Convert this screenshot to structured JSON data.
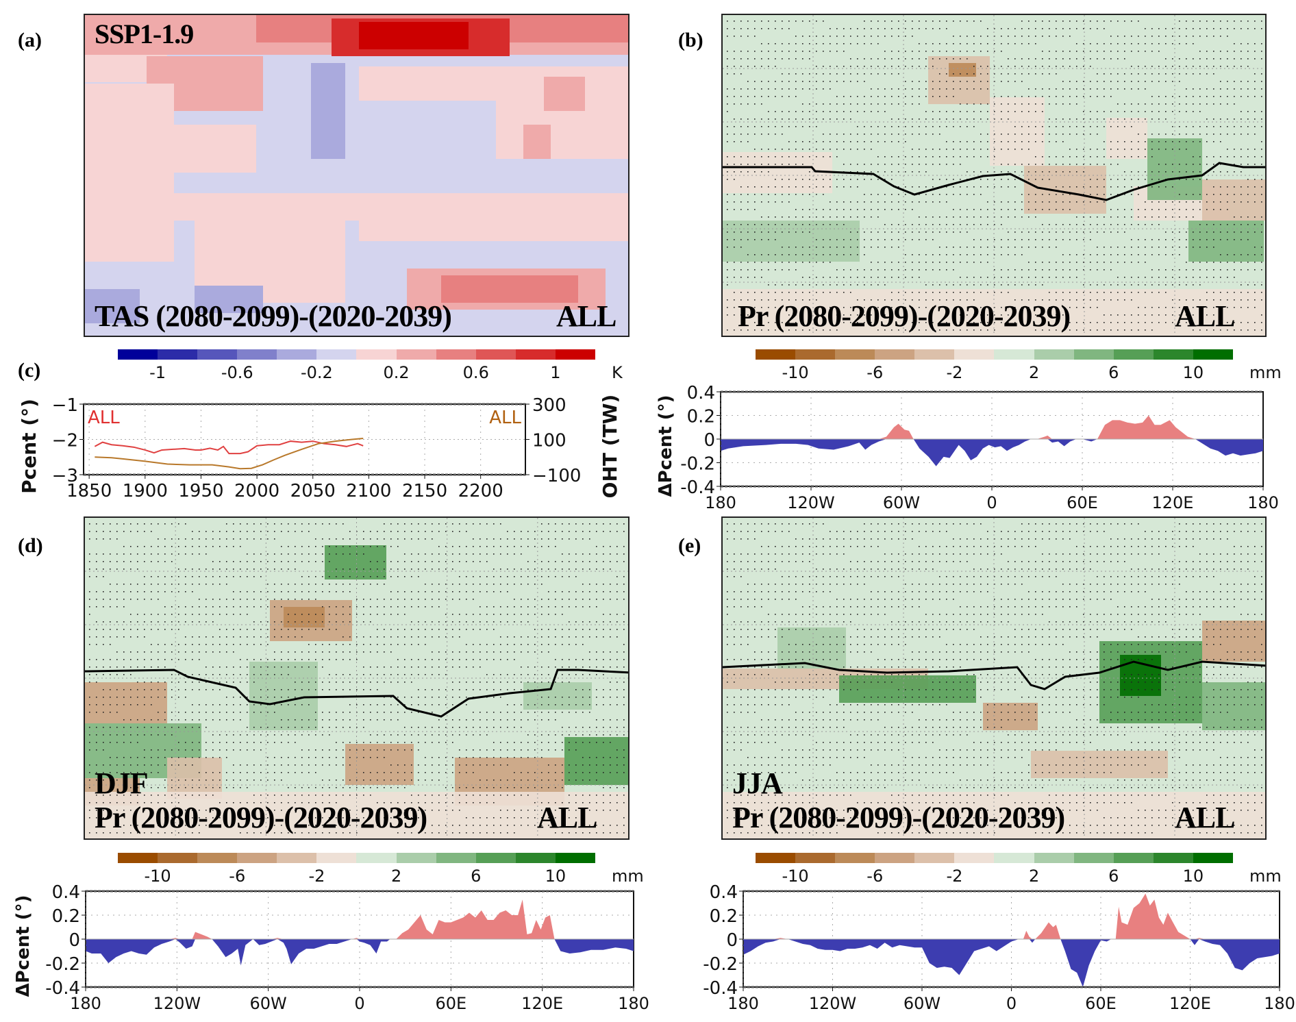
{
  "panels": {
    "a": {
      "letter": "(a)",
      "scenario": "SSP1-1.9",
      "title": "TAS (2080-2099)-(2020-2039)",
      "tag": "ALL"
    },
    "b": {
      "letter": "(b)",
      "title": "Pr (2080-2099)-(2020-2039)",
      "tag": "ALL"
    },
    "c": {
      "letter": "(c)"
    },
    "d": {
      "letter": "(d)",
      "season": "DJF",
      "title": "Pr (2080-2099)-(2020-2039)",
      "tag": "ALL"
    },
    "e": {
      "letter": "(e)",
      "season": "JJA",
      "title": "Pr (2080-2099)-(2020-2039)",
      "tag": "ALL"
    }
  },
  "colorbars": {
    "tas": {
      "unit": "K",
      "colors": [
        "#00009a",
        "#2c2ca8",
        "#5656bb",
        "#8080cb",
        "#aaaadd",
        "#d4d4ee",
        "#f7d4d4",
        "#efaaaa",
        "#e78080",
        "#df5656",
        "#d72c2c",
        "#cc0000"
      ],
      "ticks": [
        "-1",
        "-0.6",
        "-0.2",
        "0.2",
        "0.6",
        "1"
      ]
    },
    "pr": {
      "unit": "mm",
      "colors": [
        "#9a4c00",
        "#aa6a2e",
        "#bc8a58",
        "#cca382",
        "#dcc0aa",
        "#eee0d6",
        "#d6e8d6",
        "#aacdaa",
        "#80b680",
        "#569f56",
        "#2c862c",
        "#006e00"
      ],
      "ticks": [
        "-10",
        "-6",
        "-2",
        "2",
        "6",
        "10"
      ]
    }
  },
  "chart_data": [
    {
      "panel": "c",
      "type": "line",
      "title": "",
      "xlabel": "",
      "ylabel": "Pcent (°)",
      "ylabel_right": "OHT (TW)",
      "xlim": [
        1845,
        2240
      ],
      "ylim": [
        -3,
        -1
      ],
      "ylim_right": [
        -100,
        300
      ],
      "xticks": [
        "1850",
        "1900",
        "1950",
        "2000",
        "2050",
        "2100",
        "2150",
        "2200"
      ],
      "yticks": [
        "−1",
        "−2",
        "−3"
      ],
      "yticks_right": [
        "300",
        "100",
        "−100"
      ],
      "grid": true,
      "legend": [
        {
          "name": "ALL",
          "axis": "left",
          "color": "#e03030",
          "placement": "top-left"
        },
        {
          "name": "ALL",
          "axis": "right",
          "color": "#b06010",
          "placement": "top-right"
        }
      ],
      "series": [
        {
          "name": "Pcent ALL",
          "axis": "left",
          "color": "#e04040",
          "x": [
            1855,
            1862,
            1870,
            1880,
            1890,
            1900,
            1908,
            1915,
            1925,
            1935,
            1945,
            1950,
            1958,
            1965,
            1970,
            1975,
            1985,
            1992,
            2000,
            2010,
            2020,
            2030,
            2040,
            2050,
            2060,
            2070,
            2080,
            2090,
            2095
          ],
          "y": [
            -2.2,
            -2.08,
            -2.15,
            -2.18,
            -2.22,
            -2.3,
            -2.38,
            -2.3,
            -2.28,
            -2.26,
            -2.3,
            -2.3,
            -2.25,
            -2.3,
            -2.2,
            -2.4,
            -2.4,
            -2.35,
            -2.18,
            -2.15,
            -2.15,
            -2.05,
            -2.08,
            -2.05,
            -2.12,
            -2.15,
            -2.2,
            -2.12,
            -2.18
          ]
        },
        {
          "name": "OHT ALL",
          "axis": "right",
          "color": "#b8782a",
          "x": [
            1855,
            1870,
            1880,
            1900,
            1920,
            1940,
            1960,
            1975,
            1985,
            1995,
            2005,
            2015,
            2025,
            2040,
            2055,
            2070,
            2085,
            2095
          ],
          "y": [
            -2.5,
            -2.52,
            -2.55,
            -2.62,
            -2.7,
            -2.72,
            -2.72,
            -2.78,
            -2.83,
            -2.82,
            -2.72,
            -2.58,
            -2.45,
            -2.28,
            -2.12,
            -2.05,
            -2.0,
            -1.97
          ]
        }
      ]
    },
    {
      "panel": "b",
      "type": "area",
      "ylabel": "ΔPcent (°)",
      "xlim": [
        -180,
        180
      ],
      "ylim": [
        -0.4,
        0.4
      ],
      "xticks": [
        "180",
        "120W",
        "60W",
        "0",
        "60E",
        "120E",
        "180"
      ],
      "yticks": [
        "0.4",
        "0.2",
        "0",
        "-0.2",
        "-0.4"
      ],
      "positive_color": "#e88080",
      "negative_color": "#3d3db0",
      "grid": true,
      "x": [
        -180,
        -175,
        -165,
        -150,
        -140,
        -130,
        -122,
        -115,
        -105,
        -95,
        -88,
        -84,
        -80,
        -75,
        -70,
        -65,
        -62,
        -58,
        -55,
        -52,
        -48,
        -42,
        -37,
        -32,
        -28,
        -22,
        -18,
        -14,
        -10,
        -6,
        -2,
        2,
        6,
        10,
        14,
        18,
        22,
        26,
        30,
        35,
        37,
        40,
        44,
        48,
        52,
        56,
        60,
        66,
        70,
        75,
        80,
        85,
        90,
        95,
        100,
        104,
        108,
        112,
        118,
        122,
        126,
        130,
        135,
        140,
        145,
        150,
        155,
        160,
        165,
        170,
        175,
        180
      ],
      "y": [
        -0.1,
        -0.08,
        -0.06,
        -0.05,
        -0.04,
        -0.04,
        -0.05,
        -0.08,
        -0.09,
        -0.06,
        -0.03,
        -0.09,
        -0.05,
        -0.02,
        0.02,
        0.1,
        0.13,
        0.08,
        0.07,
        0.0,
        -0.08,
        -0.15,
        -0.23,
        -0.15,
        -0.16,
        -0.05,
        -0.1,
        -0.18,
        -0.15,
        -0.08,
        -0.05,
        -0.07,
        -0.06,
        -0.1,
        -0.07,
        -0.05,
        -0.02,
        0.0,
        0.0,
        0.02,
        0.03,
        -0.03,
        -0.02,
        -0.06,
        -0.02,
        0.0,
        0.0,
        -0.02,
        0.0,
        0.12,
        0.16,
        0.16,
        0.14,
        0.13,
        0.14,
        0.2,
        0.12,
        0.12,
        0.16,
        0.1,
        0.06,
        0.02,
        0.0,
        -0.04,
        -0.08,
        -0.1,
        -0.14,
        -0.12,
        -0.14,
        -0.13,
        -0.12,
        -0.1
      ]
    },
    {
      "panel": "d",
      "type": "area",
      "ylabel": "ΔPcent (°)",
      "xlim": [
        -180,
        180
      ],
      "ylim": [
        -0.4,
        0.4
      ],
      "xticks": [
        "180",
        "120W",
        "60W",
        "0",
        "60E",
        "120E",
        "180"
      ],
      "yticks": [
        "0.4",
        "0.2",
        "0",
        "-0.2",
        "-0.4"
      ],
      "positive_color": "#e88080",
      "negative_color": "#3d3db0",
      "grid": true,
      "x": [
        -180,
        -176,
        -170,
        -165,
        -160,
        -155,
        -150,
        -145,
        -140,
        -135,
        -130,
        -125,
        -121,
        -118,
        -114,
        -110,
        -108,
        -104,
        -100,
        -97,
        -93,
        -88,
        -84,
        -80,
        -78,
        -75,
        -72,
        -70,
        -66,
        -62,
        -58,
        -54,
        -50,
        -48,
        -45,
        -40,
        -35,
        -30,
        -25,
        -20,
        -15,
        -10,
        -5,
        -2,
        0,
        3,
        7,
        11,
        14,
        18,
        20,
        24,
        28,
        32,
        36,
        40,
        44,
        48,
        52,
        56,
        60,
        64,
        68,
        72,
        76,
        80,
        84,
        88,
        92,
        96,
        100,
        104,
        107,
        110,
        113,
        116,
        119,
        122,
        125,
        128,
        132,
        138,
        145,
        152,
        160,
        168,
        175,
        180
      ],
      "y": [
        -0.1,
        -0.12,
        -0.12,
        -0.2,
        -0.15,
        -0.12,
        -0.1,
        -0.12,
        -0.13,
        -0.07,
        -0.04,
        -0.02,
        0.01,
        -0.03,
        -0.08,
        -0.06,
        0.06,
        0.04,
        0.02,
        0.0,
        -0.06,
        -0.15,
        -0.12,
        -0.08,
        -0.22,
        -0.05,
        -0.02,
        0.0,
        -0.05,
        -0.04,
        -0.02,
        0.01,
        -0.03,
        -0.08,
        -0.21,
        -0.12,
        -0.08,
        -0.08,
        -0.06,
        -0.04,
        -0.04,
        -0.02,
        0.0,
        0.01,
        -0.02,
        -0.03,
        -0.05,
        -0.12,
        -0.02,
        -0.02,
        0.0,
        0.0,
        0.05,
        0.08,
        0.14,
        0.2,
        0.08,
        0.04,
        0.16,
        0.14,
        0.14,
        0.16,
        0.18,
        0.22,
        0.18,
        0.24,
        0.16,
        0.16,
        0.22,
        0.24,
        0.2,
        0.2,
        0.33,
        0.04,
        0.05,
        0.16,
        0.08,
        0.18,
        0.2,
        0.0,
        -0.1,
        -0.12,
        -0.11,
        -0.09,
        -0.09,
        -0.07,
        -0.08,
        -0.1
      ]
    },
    {
      "panel": "e",
      "type": "area",
      "ylabel": "ΔPcent (°)",
      "xlim": [
        -180,
        180
      ],
      "ylim": [
        -0.4,
        0.4
      ],
      "xticks": [
        "180",
        "120W",
        "60W",
        "0",
        "60E",
        "120E",
        "180"
      ],
      "yticks": [
        "0.4",
        "0.2",
        "0",
        "-0.2",
        "-0.4"
      ],
      "positive_color": "#e88080",
      "negative_color": "#3d3db0",
      "grid": true,
      "x": [
        -180,
        -175,
        -170,
        -165,
        -160,
        -155,
        -150,
        -145,
        -140,
        -135,
        -130,
        -125,
        -120,
        -115,
        -110,
        -105,
        -100,
        -95,
        -90,
        -85,
        -80,
        -75,
        -70,
        -65,
        -60,
        -55,
        -50,
        -45,
        -40,
        -35,
        -30,
        -25,
        -20,
        -15,
        -10,
        -5,
        0,
        5,
        8,
        10,
        12,
        14,
        16,
        20,
        25,
        28,
        30,
        33,
        36,
        40,
        44,
        48,
        52,
        56,
        60,
        64,
        67,
        70,
        72,
        74,
        78,
        82,
        86,
        90,
        93,
        96,
        99,
        102,
        105,
        108,
        112,
        116,
        120,
        123,
        126,
        130,
        135,
        140,
        145,
        150,
        155,
        160,
        165,
        170,
        175,
        180
      ],
      "y": [
        -0.13,
        -0.1,
        -0.06,
        -0.03,
        -0.02,
        0.01,
        0.0,
        -0.02,
        -0.04,
        -0.05,
        -0.08,
        -0.09,
        -0.09,
        -0.1,
        -0.08,
        -0.08,
        -0.07,
        -0.05,
        -0.08,
        -0.03,
        -0.07,
        -0.05,
        -0.06,
        -0.07,
        -0.07,
        -0.2,
        -0.24,
        -0.23,
        -0.24,
        -0.3,
        -0.2,
        -0.1,
        -0.08,
        -0.06,
        -0.1,
        -0.06,
        -0.02,
        0.0,
        0.0,
        0.07,
        0.02,
        -0.03,
        0.0,
        0.05,
        0.14,
        0.1,
        0.12,
        0.0,
        -0.1,
        -0.25,
        -0.28,
        -0.4,
        -0.22,
        -0.1,
        -0.01,
        -0.02,
        0.0,
        0.0,
        0.27,
        0.14,
        0.12,
        0.26,
        0.3,
        0.38,
        0.28,
        0.33,
        0.18,
        0.12,
        0.22,
        0.15,
        0.06,
        0.03,
        0.0,
        -0.05,
        0.01,
        -0.02,
        -0.04,
        -0.05,
        -0.12,
        -0.24,
        -0.26,
        -0.2,
        -0.16,
        -0.15,
        -0.14,
        -0.12
      ]
    }
  ]
}
